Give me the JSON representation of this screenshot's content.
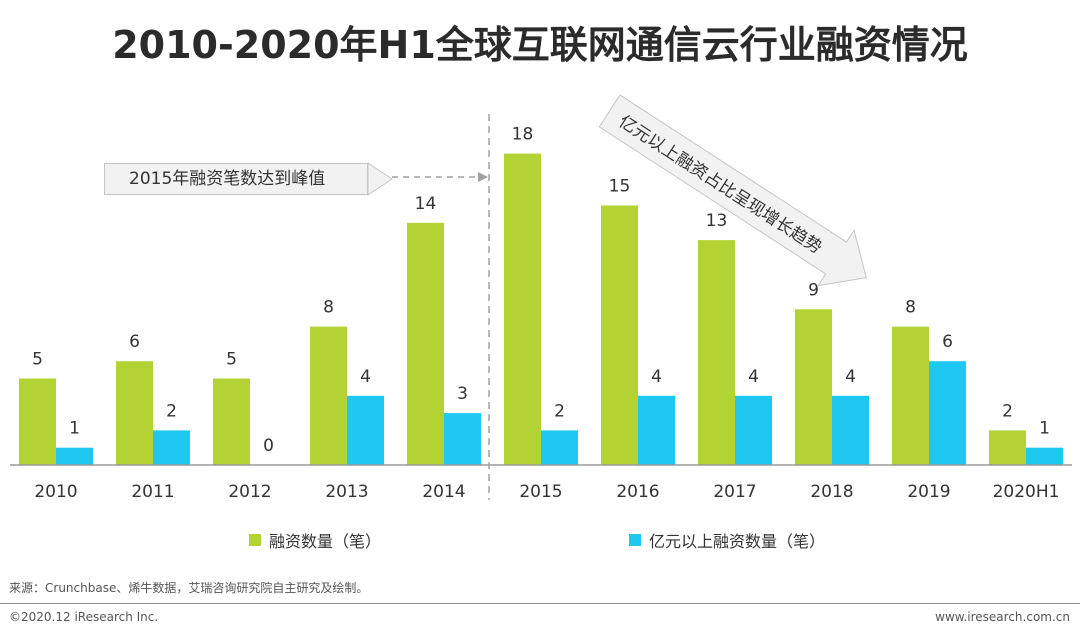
{
  "title": "2010-2020年H1全球互联网通信云行业融资情况",
  "chart_data": {
    "type": "bar",
    "categories": [
      "2010",
      "2011",
      "2012",
      "2013",
      "2014",
      "2015",
      "2016",
      "2017",
      "2018",
      "2019",
      "2020H1"
    ],
    "series": [
      {
        "name": "融资数量（笔）",
        "color": "#b3d334",
        "values": [
          5,
          6,
          5,
          8,
          14,
          18,
          15,
          13,
          9,
          8,
          2
        ]
      },
      {
        "name": "亿元以上融资数量（笔）",
        "color": "#1fc8f0",
        "values": [
          1,
          2,
          0,
          4,
          3,
          2,
          4,
          4,
          4,
          6,
          1
        ]
      }
    ],
    "ylim": [
      0,
      20
    ],
    "grid": false,
    "legend_position": "bottom",
    "annotations": [
      {
        "text": "2015年融资笔数达到峰值",
        "target": "2015"
      },
      {
        "text": "亿元以上融资占比呈现增长趋势",
        "kind": "arrow"
      }
    ]
  },
  "source": "来源：Crunchbase、烯牛数据，艾瑞咨询研究院自主研究及绘制。",
  "footer": {
    "copyright": "©2020.12 iResearch Inc.",
    "website": "www.iresearch.com.cn"
  }
}
